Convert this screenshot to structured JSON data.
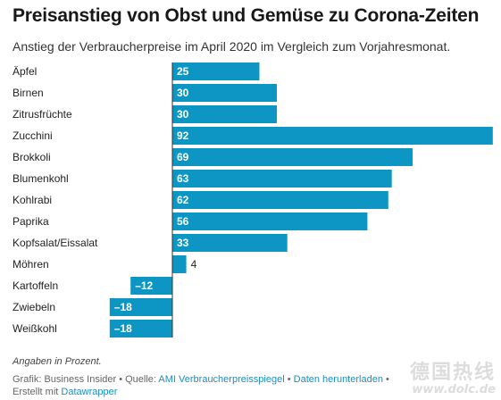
{
  "header": {
    "title": "Preisanstieg von Obst und Gemüse zu Corona-Zeiten",
    "subtitle": "Anstieg der Verbraucherpreise im April 2020 im Vergleich zum Vorjahresmonat."
  },
  "chart_data": {
    "type": "bar",
    "orientation": "horizontal",
    "categories": [
      "Äpfel",
      "Birnen",
      "Zitrusfrüchte",
      "Zucchini",
      "Brokkoli",
      "Blumenkohl",
      "Kohlrabi",
      "Paprika",
      "Kopfsalat/Eissalat",
      "Möhren",
      "Kartoffeln",
      "Zwiebeln",
      "Weißkohl"
    ],
    "values": [
      25,
      30,
      30,
      92,
      69,
      63,
      62,
      56,
      33,
      4,
      -12,
      -18,
      -18
    ],
    "value_labels": [
      "25",
      "30",
      "30",
      "92",
      "69",
      "63",
      "62",
      "56",
      "33",
      "4",
      "–12",
      "–18",
      "–18"
    ],
    "bar_color": "#0d96c4",
    "xlim": [
      -18,
      92
    ],
    "grid": false,
    "legend": "none"
  },
  "footer": {
    "note": "Angaben in Prozent.",
    "line_prefix": "Grafik: Business Insider • Quelle: ",
    "source_link": "AMI Verbraucherpreisspiegel",
    "separator": " • ",
    "download_link": "Daten herunterladen",
    "trailing": " •",
    "made_with": "Erstellt mit ",
    "tool_link": "Datawrapper"
  },
  "watermark": {
    "line1": "德国热线",
    "line2": "www.dolc.de"
  }
}
